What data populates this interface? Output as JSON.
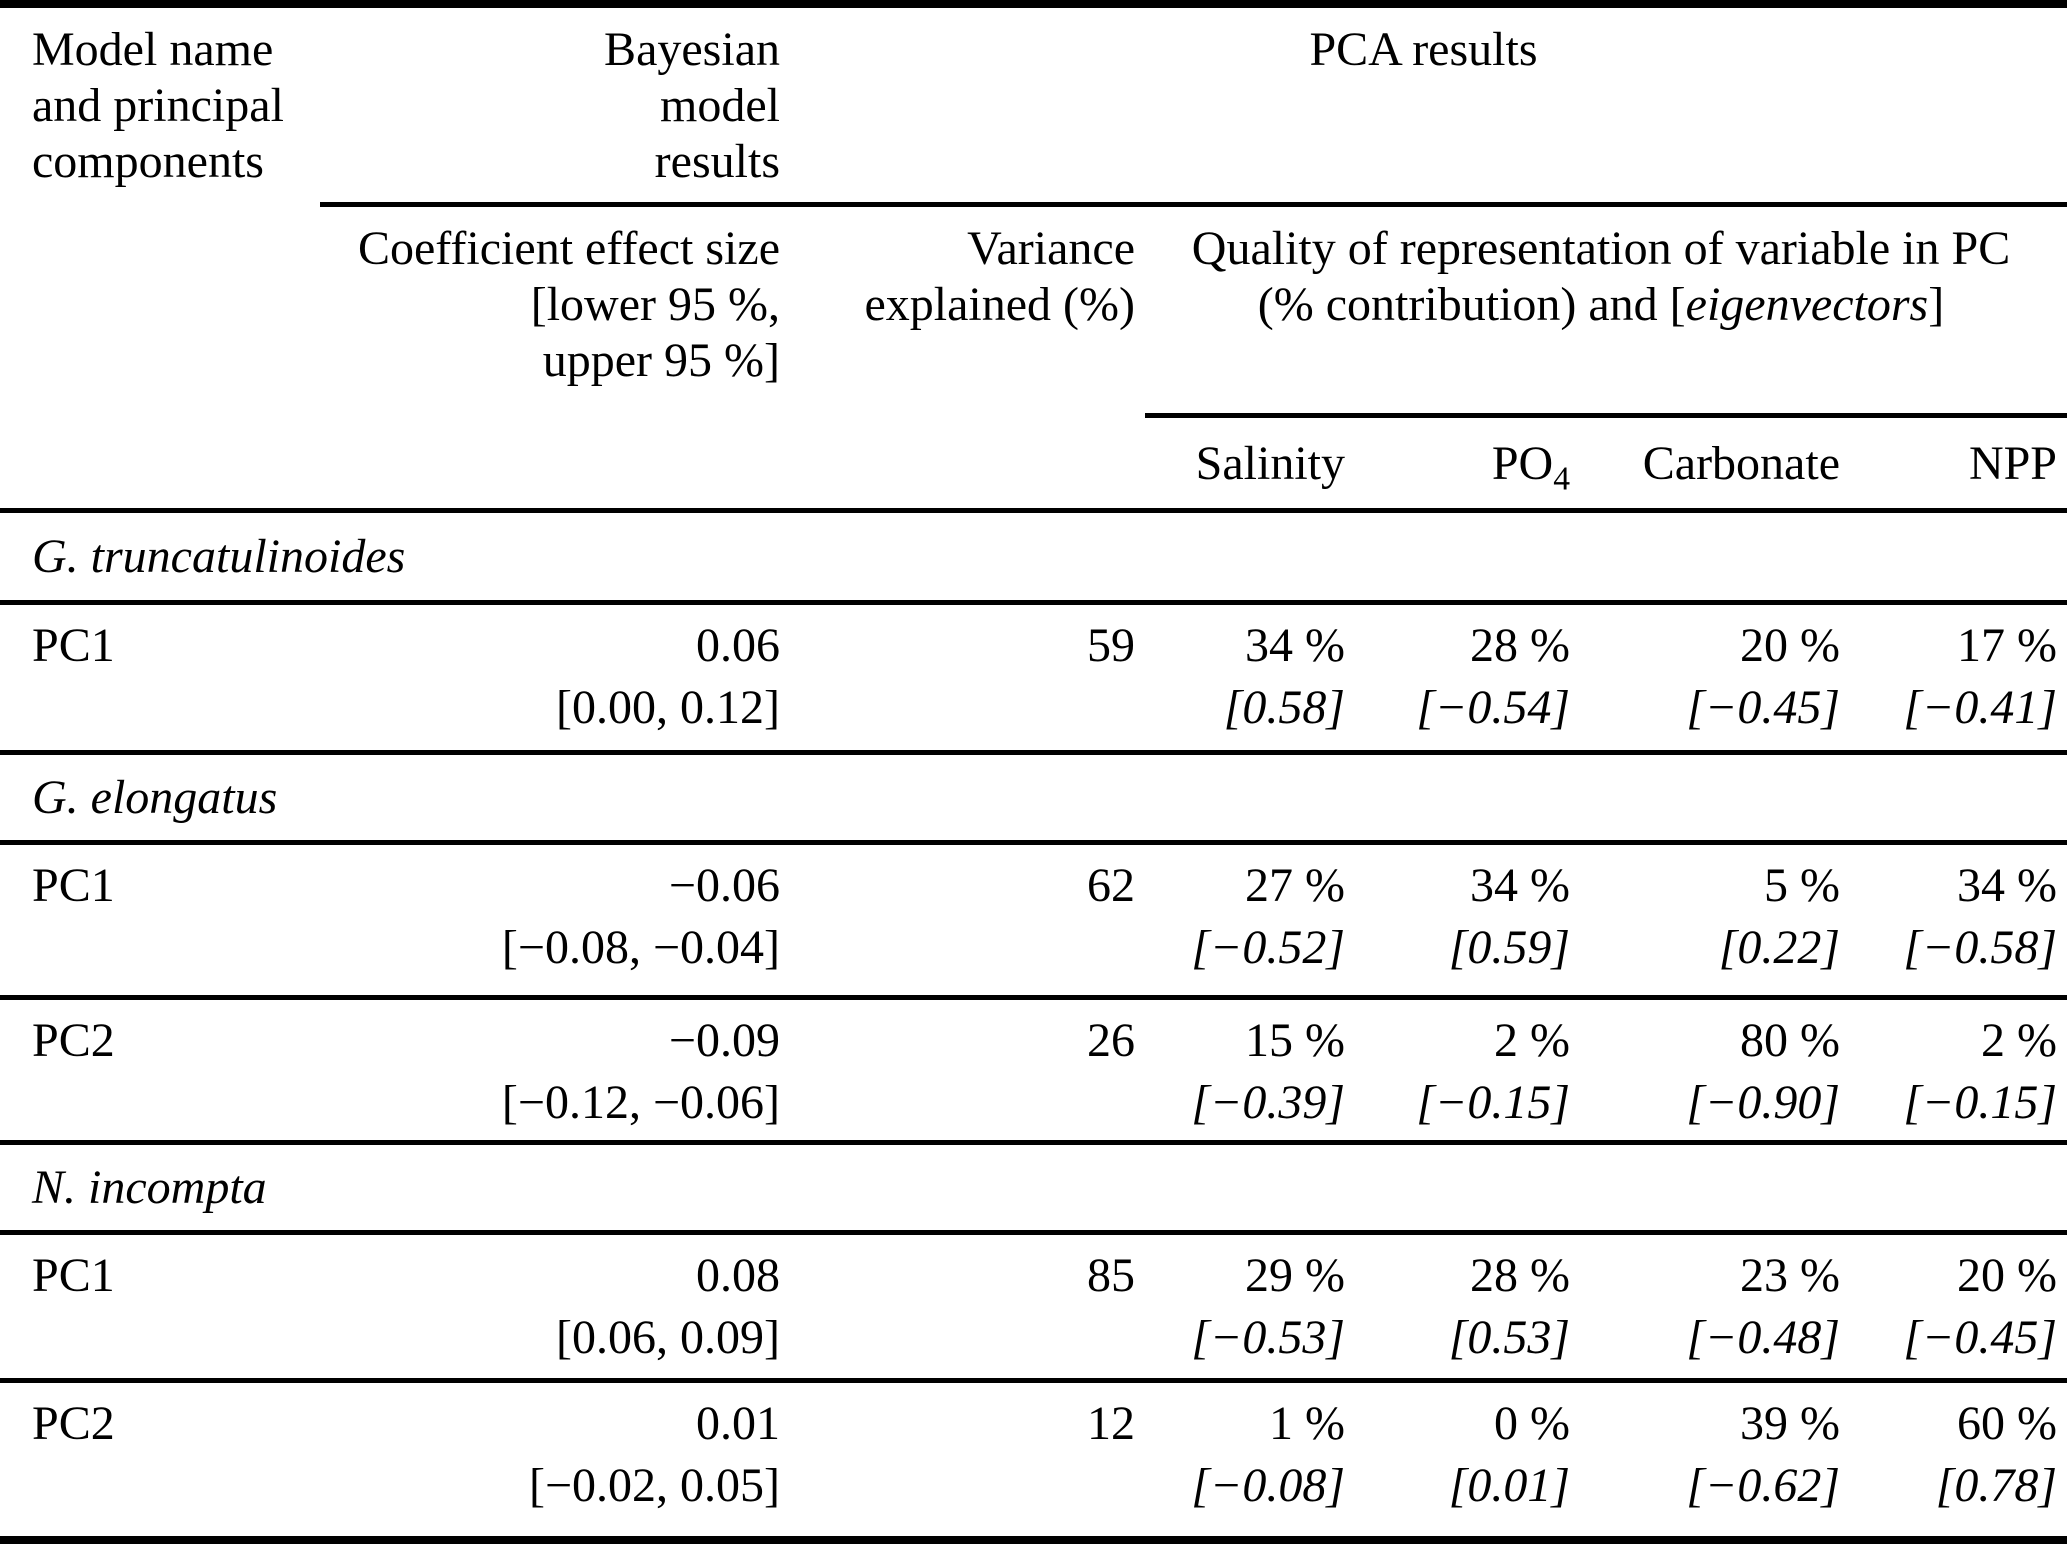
{
  "colors": {
    "text": "#000000",
    "background": "#ffffff",
    "rule": "#000000"
  },
  "header": {
    "model_lines": [
      "Model name",
      "and principal",
      "components"
    ],
    "bayesian_lines": [
      "Bayesian",
      "model",
      "results"
    ],
    "pca_results": "PCA results",
    "coeff_lines": [
      "Coefficient effect size",
      "[lower 95 %,",
      "upper 95 %]"
    ],
    "variance_lines": [
      "Variance",
      "explained (%)"
    ],
    "quality": {
      "line1": "Quality of representation of variable in PC",
      "line2_pre": "(% contribution) and [",
      "line2_italic": "eigenvectors",
      "line2_post": "]"
    },
    "columns": [
      {
        "label": "Salinity"
      },
      {
        "label": "PO",
        "sub": "4"
      },
      {
        "label": "Carbonate"
      },
      {
        "label": "NPP"
      }
    ]
  },
  "sections": [
    {
      "species": "G. truncatulinoides",
      "rows": [
        {
          "pc": "PC1",
          "coef": "0.06",
          "ci": "[0.00, 0.12]",
          "variance": "59",
          "cells": [
            {
              "pct": "34 %",
              "vec": "[0.58]"
            },
            {
              "pct": "28 %",
              "vec": "[−0.54]"
            },
            {
              "pct": "20 %",
              "vec": "[−0.45]"
            },
            {
              "pct": "17 %",
              "vec": "[−0.41]"
            }
          ]
        }
      ]
    },
    {
      "species": "G. elongatus",
      "rows": [
        {
          "pc": "PC1",
          "coef": "−0.06",
          "ci": "[−0.08, −0.04]",
          "variance": "62",
          "cells": [
            {
              "pct": "27 %",
              "vec": "[−0.52]"
            },
            {
              "pct": "34 %",
              "vec": "[0.59]"
            },
            {
              "pct": "5 %",
              "vec": "[0.22]"
            },
            {
              "pct": "34 %",
              "vec": "[−0.58]"
            }
          ]
        },
        {
          "pc": "PC2",
          "coef": "−0.09",
          "ci": "[−0.12, −0.06]",
          "variance": "26",
          "cells": [
            {
              "pct": "15 %",
              "vec": "[−0.39]"
            },
            {
              "pct": "2 %",
              "vec": "[−0.15]"
            },
            {
              "pct": "80 %",
              "vec": "[−0.90]"
            },
            {
              "pct": "2 %",
              "vec": "[−0.15]"
            }
          ]
        }
      ]
    },
    {
      "species": "N. incompta",
      "rows": [
        {
          "pc": "PC1",
          "coef": "0.08",
          "ci": "[0.06, 0.09]",
          "variance": "85",
          "cells": [
            {
              "pct": "29 %",
              "vec": "[−0.53]"
            },
            {
              "pct": "28 %",
              "vec": "[0.53]"
            },
            {
              "pct": "23 %",
              "vec": "[−0.48]"
            },
            {
              "pct": "20 %",
              "vec": "[−0.45]"
            }
          ]
        },
        {
          "pc": "PC2",
          "coef": "0.01",
          "ci": "[−0.02, 0.05]",
          "variance": "12",
          "cells": [
            {
              "pct": "1 %",
              "vec": "[−0.08]"
            },
            {
              "pct": "0 %",
              "vec": "[0.01]"
            },
            {
              "pct": "39 %",
              "vec": "[−0.62]"
            },
            {
              "pct": "60 %",
              "vec": "[0.78]"
            }
          ]
        }
      ]
    }
  ]
}
